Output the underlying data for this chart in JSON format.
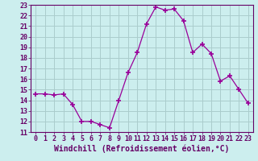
{
  "x": [
    0,
    1,
    2,
    3,
    4,
    5,
    6,
    7,
    8,
    9,
    10,
    11,
    12,
    13,
    14,
    15,
    16,
    17,
    18,
    19,
    20,
    21,
    22,
    23
  ],
  "y": [
    14.6,
    14.6,
    14.5,
    14.6,
    13.6,
    12.0,
    12.0,
    11.7,
    11.4,
    14.0,
    16.6,
    18.5,
    21.2,
    22.8,
    22.5,
    22.6,
    21.5,
    18.5,
    19.3,
    18.4,
    15.8,
    16.3,
    15.0,
    13.7
  ],
  "line_color": "#990099",
  "marker": "+",
  "marker_size": 4,
  "marker_lw": 1.2,
  "bg_color": "#cceeee",
  "grid_color": "#aacccc",
  "xlabel": "Windchill (Refroidissement éolien,°C)",
  "xlabel_fontsize": 7,
  "ylim": [
    11,
    23
  ],
  "xlim": [
    -0.5,
    23.5
  ],
  "yticks": [
    11,
    12,
    13,
    14,
    15,
    16,
    17,
    18,
    19,
    20,
    21,
    22,
    23
  ],
  "xticks": [
    0,
    1,
    2,
    3,
    4,
    5,
    6,
    7,
    8,
    9,
    10,
    11,
    12,
    13,
    14,
    15,
    16,
    17,
    18,
    19,
    20,
    21,
    22,
    23
  ],
  "tick_fontsize": 6,
  "axis_label_color": "#660066",
  "spine_color": "#660066",
  "font_family": "monospace"
}
